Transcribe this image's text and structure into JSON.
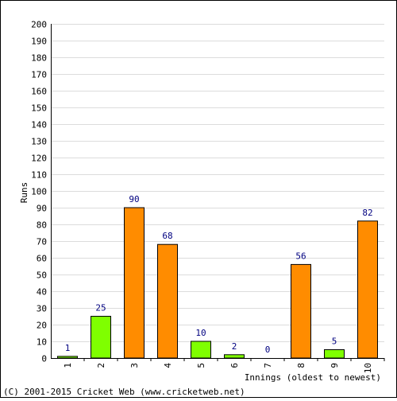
{
  "chart_data": {
    "type": "bar",
    "xlabel": "Innings (oldest to newest)",
    "ylabel": "Runs",
    "categories": [
      "1",
      "2",
      "3",
      "4",
      "5",
      "6",
      "7",
      "8",
      "9",
      "10"
    ],
    "values": [
      1,
      25,
      90,
      68,
      10,
      2,
      0,
      56,
      5,
      82
    ],
    "bar_colors": [
      "#7fff00",
      "#7fff00",
      "#ff8c00",
      "#ff8c00",
      "#7fff00",
      "#7fff00",
      "#7fff00",
      "#ff8c00",
      "#7fff00",
      "#ff8c00"
    ],
    "ylim": [
      0,
      200
    ],
    "y_tick_step": 10,
    "grid": true,
    "legend": "none"
  },
  "footer": {
    "copyright": "(C) 2001-2015 Cricket Web (www.cricketweb.net)"
  },
  "colors": {
    "frame": "#000000",
    "grid": "#dcdcdc",
    "data_label": "#000080"
  }
}
